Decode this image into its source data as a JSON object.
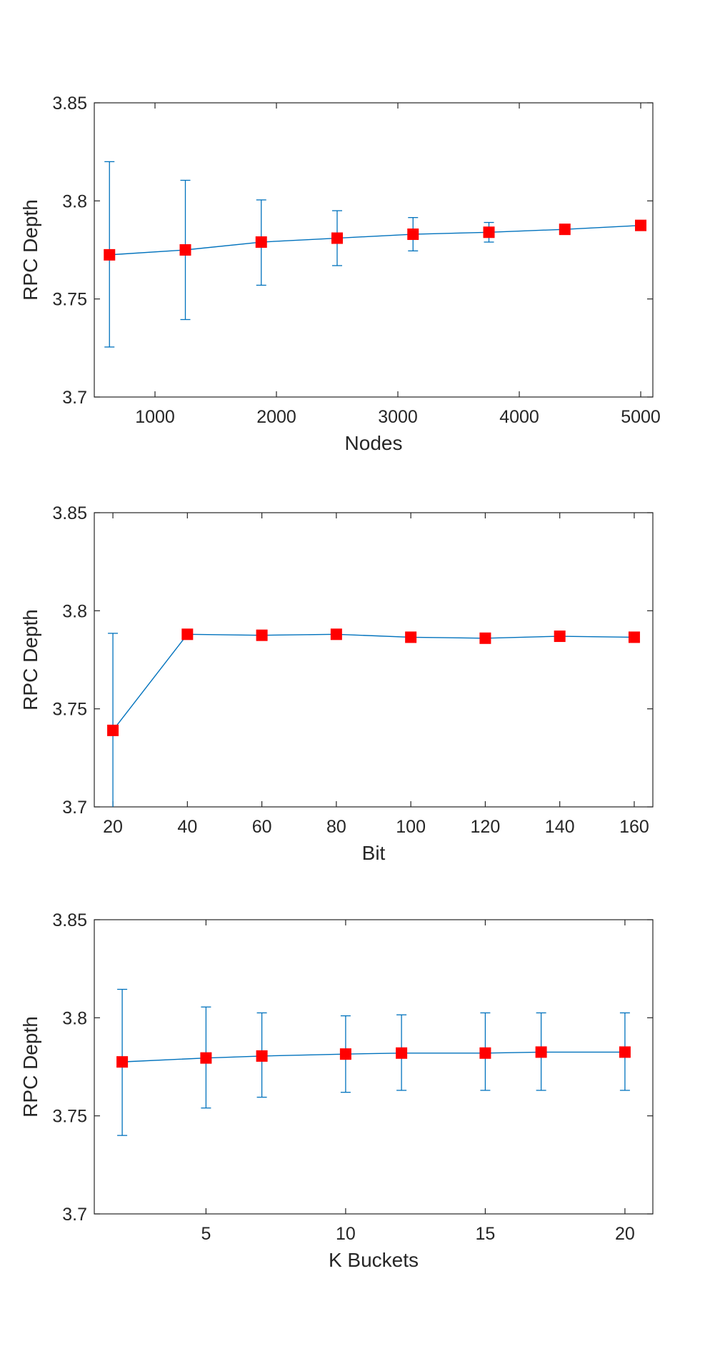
{
  "chart_data": [
    {
      "type": "line",
      "xlabel": "Nodes",
      "ylabel": "RPC Depth",
      "xlim": [
        500,
        5100
      ],
      "ylim": [
        3.7,
        3.85
      ],
      "xticks": [
        1000,
        2000,
        3000,
        4000,
        5000
      ],
      "xtick_labels": [
        "1000",
        "2000",
        "3000",
        "4000",
        "5000"
      ],
      "yticks": [
        3.7,
        3.75,
        3.8,
        3.85
      ],
      "ytick_labels": [
        "3.7",
        "3.75",
        "3.8",
        "3.85"
      ],
      "grid": false,
      "series": [
        {
          "x": [
            625,
            1250,
            1875,
            2500,
            3125,
            3750,
            4375,
            5000
          ],
          "y": [
            3.7725,
            3.775,
            3.779,
            3.781,
            3.783,
            3.784,
            3.7855,
            3.7875
          ],
          "err_low": [
            3.7255,
            3.7395,
            3.757,
            3.767,
            3.7745,
            3.779,
            3.783,
            3.786
          ],
          "err_high": [
            3.82,
            3.8105,
            3.8005,
            3.795,
            3.7915,
            3.789,
            3.788,
            3.789
          ]
        }
      ]
    },
    {
      "type": "line",
      "xlabel": "Bit",
      "ylabel": "RPC Depth",
      "xlim": [
        15,
        165
      ],
      "ylim": [
        3.7,
        3.85
      ],
      "xticks": [
        20,
        40,
        60,
        80,
        100,
        120,
        140,
        160
      ],
      "xtick_labels": [
        "20",
        "40",
        "60",
        "80",
        "100",
        "120",
        "140",
        "160"
      ],
      "yticks": [
        3.7,
        3.75,
        3.8,
        3.85
      ],
      "ytick_labels": [
        "3.7",
        "3.75",
        "3.8",
        "3.85"
      ],
      "grid": false,
      "series": [
        {
          "x": [
            20,
            40,
            60,
            80,
            100,
            120,
            140,
            160
          ],
          "y": [
            3.739,
            3.788,
            3.7875,
            3.788,
            3.7865,
            3.786,
            3.787,
            3.7865
          ],
          "err_low": [
            3.69,
            3.786,
            3.786,
            3.7865,
            3.785,
            3.7845,
            3.7855,
            3.785
          ],
          "err_high": [
            3.7885,
            3.7895,
            3.789,
            3.7895,
            3.788,
            3.7875,
            3.7885,
            3.788
          ]
        }
      ]
    },
    {
      "type": "line",
      "xlabel": "K Buckets",
      "ylabel": "RPC Depth",
      "xlim": [
        1,
        21
      ],
      "ylim": [
        3.7,
        3.85
      ],
      "xticks": [
        5,
        10,
        15,
        20
      ],
      "xtick_labels": [
        "5",
        "10",
        "15",
        "20"
      ],
      "yticks": [
        3.7,
        3.75,
        3.8,
        3.85
      ],
      "ytick_labels": [
        "3.7",
        "3.75",
        "3.8",
        "3.85"
      ],
      "grid": false,
      "series": [
        {
          "x": [
            2,
            5,
            7,
            10,
            12,
            15,
            17,
            20
          ],
          "y": [
            3.7775,
            3.7795,
            3.7805,
            3.7815,
            3.782,
            3.782,
            3.7825,
            3.7825
          ],
          "err_low": [
            3.74,
            3.754,
            3.7595,
            3.762,
            3.763,
            3.763,
            3.763,
            3.763
          ],
          "err_high": [
            3.8145,
            3.8055,
            3.8025,
            3.801,
            3.8015,
            3.8025,
            3.8025,
            3.8025
          ]
        }
      ]
    }
  ],
  "colors": {
    "line": "#0072BD",
    "marker": "#FF0000",
    "axis": "#262626"
  }
}
